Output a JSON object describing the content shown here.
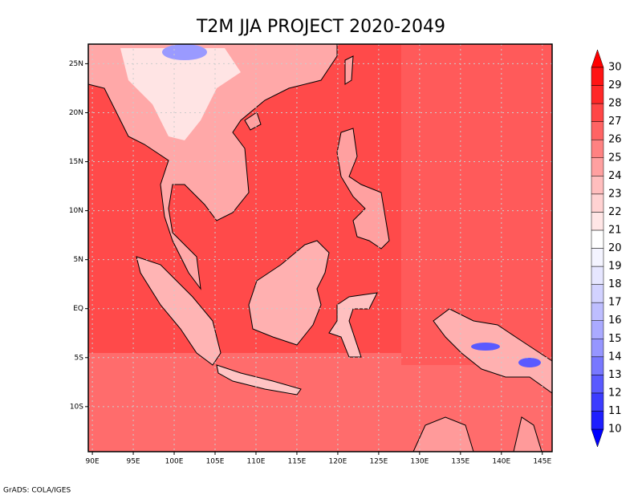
{
  "map": {
    "title": "T2M JJA PROJECT 2020-2049",
    "xlim": [
      89.5,
      146.2
    ],
    "ylim": [
      -14.6,
      27
    ],
    "lon_ticks": [
      {
        "value": 90,
        "label": "90E"
      },
      {
        "value": 95,
        "label": "95E"
      },
      {
        "value": 100,
        "label": "100E"
      },
      {
        "value": 105,
        "label": "105E"
      },
      {
        "value": 110,
        "label": "110E"
      },
      {
        "value": 115,
        "label": "115E"
      },
      {
        "value": 120,
        "label": "120E"
      },
      {
        "value": 125,
        "label": "125E"
      },
      {
        "value": 130,
        "label": "130E"
      },
      {
        "value": 135,
        "label": "135E"
      },
      {
        "value": 140,
        "label": "140E"
      },
      {
        "value": 145,
        "label": "145E"
      }
    ],
    "lat_ticks": [
      {
        "value": 25,
        "label": "25N"
      },
      {
        "value": 20,
        "label": "20N"
      },
      {
        "value": 15,
        "label": "15N"
      },
      {
        "value": 10,
        "label": "10N"
      },
      {
        "value": 5,
        "label": "5N"
      },
      {
        "value": 0,
        "label": "EQ"
      },
      {
        "value": -5,
        "label": "5S"
      },
      {
        "value": -10,
        "label": "10S"
      }
    ],
    "grid": true,
    "colorbar": {
      "levels": [
        10,
        11,
        12,
        13,
        14,
        15,
        16,
        17,
        18,
        19,
        20,
        21,
        22,
        23,
        24,
        25,
        26,
        27,
        28,
        29,
        30
      ],
      "colors": [
        "#0000ff",
        "#1e1eff",
        "#3c3cff",
        "#5a5aff",
        "#7878ff",
        "#9696ff",
        "#aaaaff",
        "#bebeff",
        "#d2d2ff",
        "#e6e6ff",
        "#f4f4ff",
        "#ffffff",
        "#ffe6e6",
        "#ffd2d2",
        "#ffbebe",
        "#ffa0a0",
        "#ff8282",
        "#ff6464",
        "#ff4646",
        "#ff2828",
        "#ff1414",
        "#ff0000"
      ]
    },
    "footer": "GrADS: COLA/IGES"
  }
}
